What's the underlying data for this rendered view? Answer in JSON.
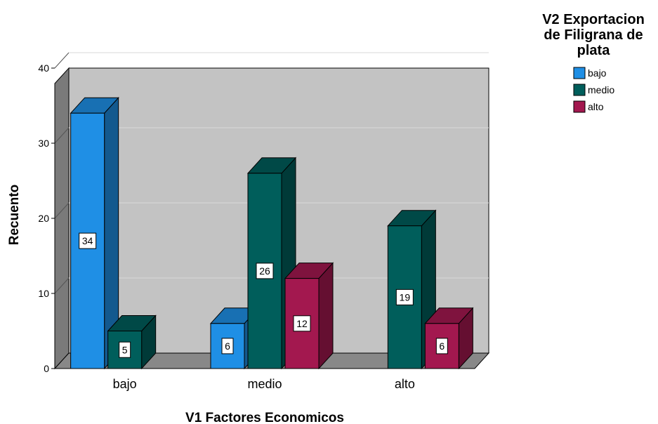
{
  "chart_data": {
    "type": "bar",
    "categories": [
      "bajo",
      "medio",
      "alto"
    ],
    "series": [
      {
        "name": "bajo",
        "values": [
          34,
          6,
          0
        ],
        "color": "#1f8fe5"
      },
      {
        "name": "medio",
        "values": [
          5,
          26,
          19
        ],
        "color": "#005e5b"
      },
      {
        "name": "alto",
        "values": [
          0,
          12,
          6
        ],
        "color": "#a3184f"
      }
    ],
    "xlabel": "V1 Factores Economicos",
    "ylabel": "Recuento",
    "ylim": [
      0,
      40
    ],
    "yticks": [
      0,
      10,
      20,
      30,
      40
    ],
    "legend": {
      "title_lines": [
        "V2 Exportacion",
        "de Filigrana de",
        "plata"
      ],
      "placement": "top-right"
    },
    "grid": true,
    "style": "3d",
    "wall_color": "#c3c3c3",
    "floor_color": "#888888"
  }
}
